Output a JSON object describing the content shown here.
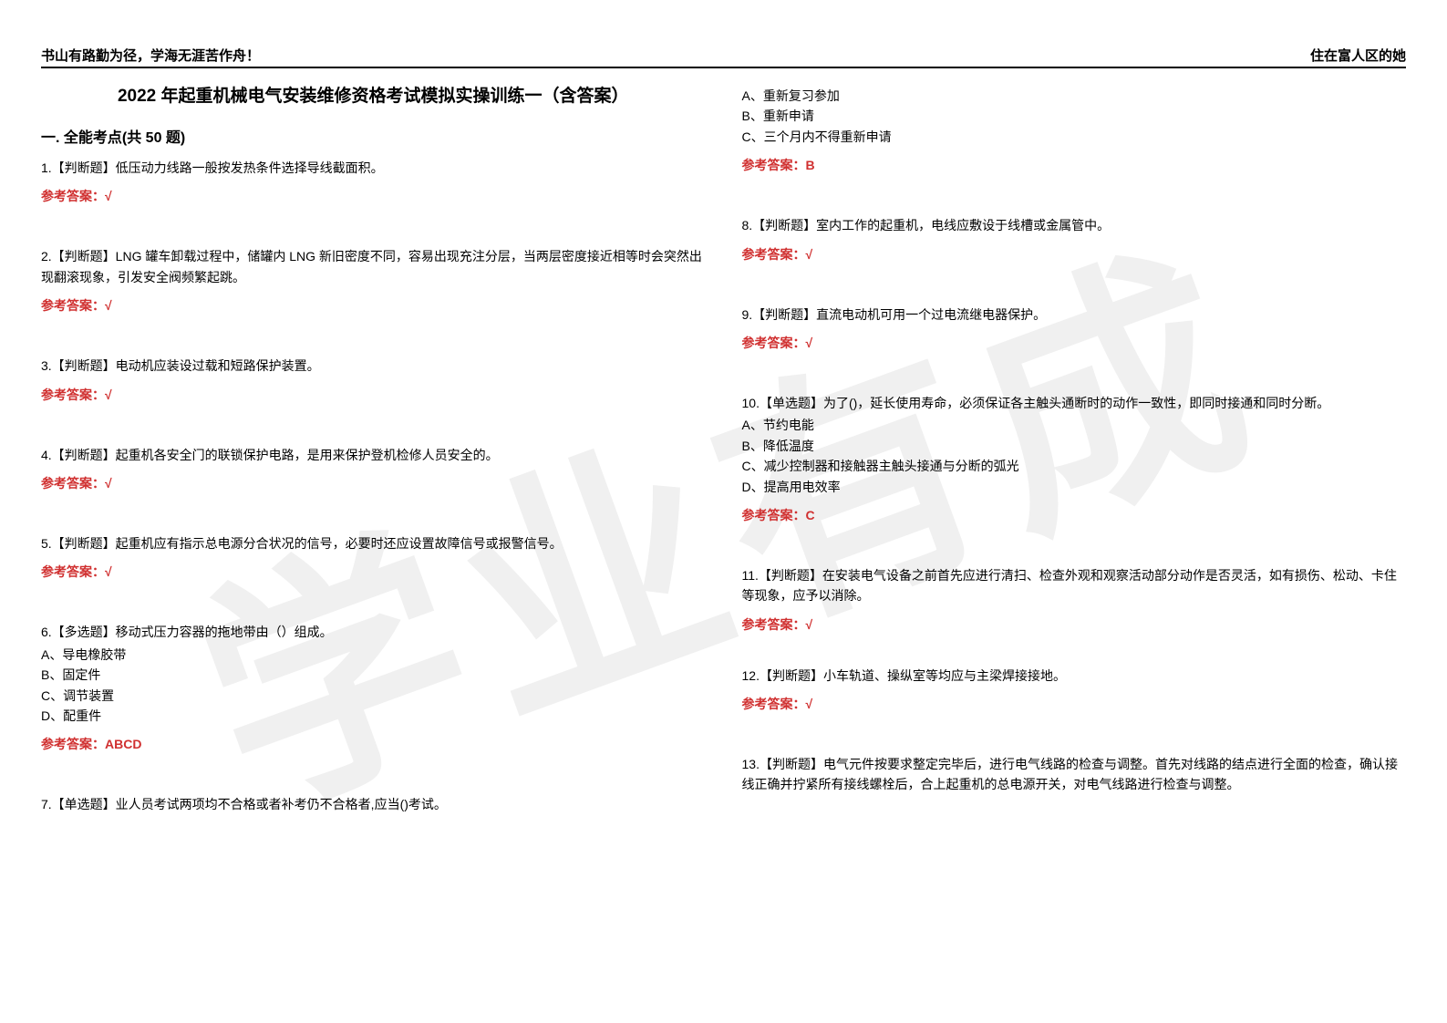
{
  "watermark": "学业有成",
  "header": {
    "left": "书山有路勤为径，学海无涯苦作舟！",
    "right": "住在富人区的她"
  },
  "doc_title": "2022 年起重机械电气安装维修资格考试模拟实操训练一（含答案）",
  "section_title": "一. 全能考点(共 50 题)",
  "col1": {
    "q1": {
      "text": "1.【判断题】低压动力线路一般按发热条件选择导线截面积。",
      "answer": "参考答案：√"
    },
    "q2": {
      "text": "2.【判断题】LNG 罐车卸载过程中，储罐内 LNG 新旧密度不同，容易出现充注分层，当两层密度接近相等时会突然出现翻滚现象，引发安全阀频繁起跳。",
      "answer": "参考答案：√"
    },
    "q3": {
      "text": "3.【判断题】电动机应装设过载和短路保护装置。",
      "answer": "参考答案：√"
    },
    "q4": {
      "text": "4.【判断题】起重机各安全门的联锁保护电路，是用来保护登机检修人员安全的。",
      "answer": "参考答案：√"
    },
    "q5": {
      "text": "5.【判断题】起重机应有指示总电源分合状况的信号，必要时还应设置故障信号或报警信号。",
      "answer": "参考答案：√"
    },
    "q6": {
      "text": "6.【多选题】移动式压力容器的拖地带由（）组成。",
      "optA": "A、导电橡胶带",
      "optB": "B、固定件",
      "optC": "C、调节装置",
      "optD": "D、配重件",
      "answer": "参考答案：ABCD"
    },
    "q7": {
      "text": "7.【单选题】业人员考试两项均不合格或者补考仍不合格者,应当()考试。"
    }
  },
  "col2": {
    "q7opts": {
      "optA": "A、重新复习参加",
      "optB": "B、重新申请",
      "optC": "C、三个月内不得重新申请",
      "answer": "参考答案：B"
    },
    "q8": {
      "text": "8.【判断题】室内工作的起重机，电线应敷设于线槽或金属管中。",
      "answer": "参考答案：√"
    },
    "q9": {
      "text": "9.【判断题】直流电动机可用一个过电流继电器保护。",
      "answer": "参考答案：√"
    },
    "q10": {
      "text": "10.【单选题】为了()，延长使用寿命，必须保证各主触头通断时的动作一致性，即同时接通和同时分断。",
      "optA": "A、节约电能",
      "optB": "B、降低温度",
      "optC": "C、减少控制器和接触器主触头接通与分断的弧光",
      "optD": "D、提高用电效率",
      "answer": "参考答案：C"
    },
    "q11": {
      "text": "11.【判断题】在安装电气设备之前首先应进行清扫、检查外观和观察活动部分动作是否灵活，如有损伤、松动、卡住等现象，应予以消除。",
      "answer": "参考答案：√"
    },
    "q12": {
      "text": "12.【判断题】小车轨道、操纵室等均应与主梁焊接接地。",
      "answer": "参考答案：√"
    },
    "q13": {
      "text": "13.【判断题】电气元件按要求整定完毕后，进行电气线路的检查与调整。首先对线路的结点进行全面的检查，确认接线正确并拧紧所有接线螺栓后，合上起重机的总电源开关，对电气线路进行检查与调整。"
    }
  },
  "colors": {
    "answer_color": "#d03030",
    "text_color": "#000000",
    "watermark_color": "rgba(0,0,0,0.06)"
  }
}
